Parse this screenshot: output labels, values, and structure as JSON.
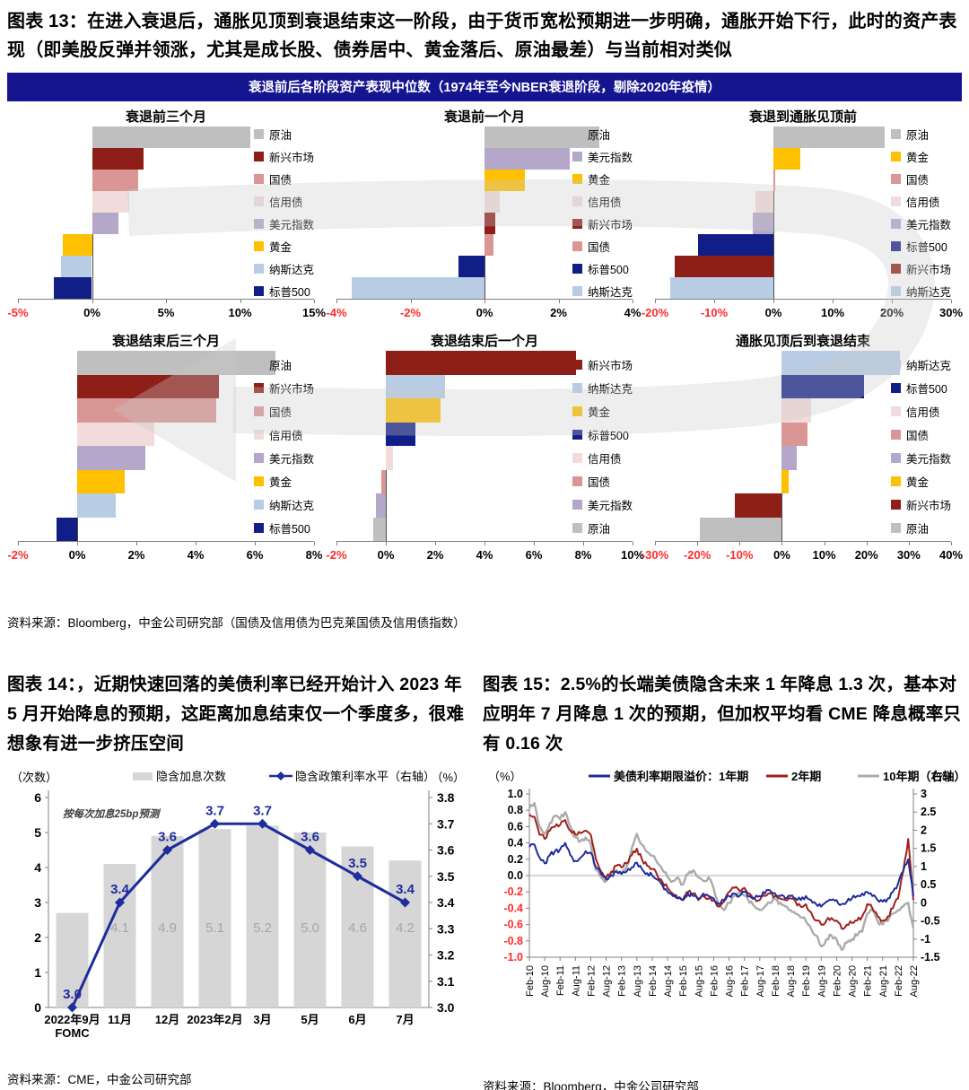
{
  "fig13": {
    "title": "图表 13：在进入衰退后，通胀见顶到衰退结束这一阶段，由于货币宽松预期进一步明确，通胀开始下行，此时的资产表现（即美股反弹并领涨，尤其是成长股、债券居中、黄金落后、原油最差）与当前相对类似",
    "banner": "衰退前后各阶段资产表现中位数（1974年至今NBER衰退阶段，剔除2020年疫情）",
    "source": "资料来源：Bloomberg，中金公司研究部（国债及信用债为巴克莱国债及信用债指数）"
  },
  "fig14": {
    "title": "图表 14：，近期快速回落的美债利率已经开始计入 2023 年 5 月开始降息的预期，这距离加息结束仅一个季度多，很难想象有进一步挤压空间",
    "source": "资料来源：CME，中金公司研究部"
  },
  "fig15": {
    "title": "图表 15：2.5%的长端美债隐含未来 1 年降息 1.3 次，基本对应明年 7 月降息 1 次的预期，但加权平均看 CME 降息概率只有 0.16 次",
    "source": "资料来源：Bloomberg，中金公司研究部"
  },
  "colors": {
    "banner_bg": "#15158F",
    "negative_tick": "#FF2A2A",
    "axis_gray": "#808080",
    "zero_line": "#4d4d4d",
    "arrow_gray": "#C9C9C9",
    "fig14_bar": "#D6D6D6",
    "fig14_bar_label": "#A6A6A6",
    "navy": "#1F2C9C",
    "dark_red": "#9E211B",
    "line_gray": "#ABABAB"
  },
  "asset_colors": {
    "原油": "#BFBFBF",
    "新兴市场": "#8E1F18",
    "国债": "#D99694",
    "信用债": "#F2DCDB",
    "美元指数": "#B4A7C9",
    "黄金": "#FFC000",
    "纳斯达克": "#B8CCE4",
    "标普500": "#121E87"
  },
  "chart_data": [
    {
      "id": "pre3m",
      "type": "bar",
      "row": 1,
      "title": "衰退前三个月",
      "xlim": [
        -5,
        15
      ],
      "ticks": [
        -5,
        0,
        5,
        10,
        15
      ],
      "bars": [
        {
          "label": "原油",
          "value": 10.7
        },
        {
          "label": "新兴市场",
          "value": 3.5
        },
        {
          "label": "国债",
          "value": 3.1
        },
        {
          "label": "信用债",
          "value": 2.5
        },
        {
          "label": "美元指数",
          "value": 1.8
        },
        {
          "label": "黄金",
          "value": -2.0
        },
        {
          "label": "纳斯达克",
          "value": -2.1
        },
        {
          "label": "标普500",
          "value": -2.6
        }
      ]
    },
    {
      "id": "pre1m",
      "type": "bar",
      "row": 1,
      "title": "衰退前一个月",
      "xlim": [
        -4,
        4
      ],
      "ticks": [
        -4,
        -2,
        0,
        2,
        4
      ],
      "bars": [
        {
          "label": "原油",
          "value": 3.1
        },
        {
          "label": "美元指数",
          "value": 2.3
        },
        {
          "label": "黄金",
          "value": 1.1
        },
        {
          "label": "信用债",
          "value": 0.4
        },
        {
          "label": "新兴市场",
          "value": 0.3
        },
        {
          "label": "国债",
          "value": 0.25
        },
        {
          "label": "标普500",
          "value": -0.7
        },
        {
          "label": "纳斯达克",
          "value": -3.6
        }
      ]
    },
    {
      "id": "rec2peak",
      "type": "bar",
      "row": 1,
      "title": "衰退到通胀见顶前",
      "xlim": [
        -20,
        30
      ],
      "ticks": [
        -20,
        -10,
        0,
        10,
        20,
        30
      ],
      "bars": [
        {
          "label": "原油",
          "value": 18.8
        },
        {
          "label": "黄金",
          "value": 4.5
        },
        {
          "label": "国债",
          "value": 0.3
        },
        {
          "label": "信用债",
          "value": -3.0
        },
        {
          "label": "美元指数",
          "value": -3.5
        },
        {
          "label": "标普500",
          "value": -12.8
        },
        {
          "label": "新兴市场",
          "value": -16.6
        },
        {
          "label": "纳斯达克",
          "value": -17.4
        }
      ]
    },
    {
      "id": "post3m",
      "type": "bar",
      "row": 2,
      "title": "衰退结束后三个月",
      "xlim": [
        -2,
        8
      ],
      "ticks": [
        -2,
        0,
        2,
        4,
        6,
        8
      ],
      "bars": [
        {
          "label": "原油",
          "value": 6.7
        },
        {
          "label": "新兴市场",
          "value": 4.8
        },
        {
          "label": "国债",
          "value": 4.7
        },
        {
          "label": "信用债",
          "value": 2.6
        },
        {
          "label": "美元指数",
          "value": 2.3
        },
        {
          "label": "黄金",
          "value": 1.6
        },
        {
          "label": "纳斯达克",
          "value": 1.3
        },
        {
          "label": "标普500",
          "value": -0.7
        }
      ]
    },
    {
      "id": "post1m",
      "type": "bar",
      "row": 2,
      "title": "衰退结束后一个月",
      "xlim": [
        -2,
        10
      ],
      "ticks": [
        -2,
        0,
        2,
        4,
        6,
        8,
        10
      ],
      "bars": [
        {
          "label": "新兴市场",
          "value": 7.7
        },
        {
          "label": "纳斯达克",
          "value": 2.4
        },
        {
          "label": "黄金",
          "value": 2.2
        },
        {
          "label": "标普500",
          "value": 1.2
        },
        {
          "label": "信用债",
          "value": 0.3
        },
        {
          "label": "国债",
          "value": -0.2
        },
        {
          "label": "美元指数",
          "value": -0.4
        },
        {
          "label": "原油",
          "value": -0.5
        }
      ]
    },
    {
      "id": "peak2end",
      "type": "bar",
      "row": 2,
      "title": "通胀见顶后到衰退结束",
      "xlim": [
        -30,
        40
      ],
      "ticks": [
        -30,
        -20,
        -10,
        0,
        10,
        20,
        30,
        40
      ],
      "bars": [
        {
          "label": "纳斯达克",
          "value": 28.0
        },
        {
          "label": "标普500",
          "value": 19.4
        },
        {
          "label": "信用债",
          "value": 7.0
        },
        {
          "label": "国债",
          "value": 6.1
        },
        {
          "label": "美元指数",
          "value": 3.6
        },
        {
          "label": "黄金",
          "value": 1.6
        },
        {
          "label": "新兴市场",
          "value": -11.1
        },
        {
          "label": "原油",
          "value": -19.4
        }
      ]
    },
    {
      "id": "fig14",
      "type": "bar+line",
      "categories": [
        "2022年9月\nFOMC",
        "11月",
        "12月",
        "2023年2月",
        "3月",
        "5月",
        "6月",
        "7月"
      ],
      "bar_series": {
        "name": "隐含加息次数",
        "values": [
          2.7,
          4.1,
          4.9,
          5.1,
          5.2,
          5.0,
          4.6,
          4.2
        ],
        "labels": [
          "",
          "4.1",
          "4.9",
          "5.1",
          "5.2",
          "5.0",
          "4.6",
          "4.2"
        ]
      },
      "line_series": {
        "name": "隐含政策利率水平（右轴）",
        "values": [
          3.0,
          3.4,
          3.6,
          3.7,
          3.7,
          3.6,
          3.5,
          3.4
        ]
      },
      "left_axis": {
        "label": "（次数）",
        "min": 0,
        "max": 6,
        "ticks": [
          0,
          1,
          2,
          3,
          4,
          5,
          6
        ]
      },
      "right_axis": {
        "label": "（%）",
        "min": 3.0,
        "max": 3.8,
        "ticks": [
          3.0,
          3.1,
          3.2,
          3.3,
          3.4,
          3.5,
          3.6,
          3.7,
          3.8
        ]
      },
      "annotation": "按每次加息25bp预测"
    },
    {
      "id": "fig15",
      "type": "line",
      "left_axis": {
        "label": "（%）",
        "min": -1.0,
        "max": 1.0,
        "ticks": [
          1.0,
          0.8,
          0.6,
          0.4,
          0.2,
          0.0,
          -0.2,
          -0.4,
          -0.6,
          -0.8,
          -1.0
        ]
      },
      "right_axis": {
        "label": "（%）",
        "min": -1.5,
        "max": 3.0,
        "ticks": [
          3,
          2.5,
          2,
          1.5,
          1,
          0.5,
          0,
          -0.5,
          -1,
          -1.5
        ]
      },
      "x_labels": [
        "Feb-10",
        "Aug-10",
        "Feb-11",
        "Aug-11",
        "Feb-12",
        "Aug-12",
        "Feb-13",
        "Aug-13",
        "Feb-14",
        "Aug-14",
        "Feb-15",
        "Aug-15",
        "Feb-16",
        "Aug-16",
        "Feb-17",
        "Aug-17",
        "Feb-18",
        "Aug-18",
        "Feb-19",
        "Aug-19",
        "Feb-20",
        "Aug-20",
        "Feb-21",
        "Aug-21",
        "Feb-22",
        "Aug-22"
      ],
      "series": [
        {
          "name": "美债利率期限溢价：1年期",
          "axis": "left",
          "color": "#1F2C9C",
          "values": [
            0.35,
            0.38,
            0.22,
            0.15,
            0.25,
            0.3,
            0.32,
            0.4,
            0.25,
            0.18,
            0.22,
            0.3,
            0.28,
            0.1,
            0.02,
            -0.05,
            0.0,
            0.05,
            0.02,
            0.05,
            0.1,
            0.16,
            0.08,
            0.03,
            0.0,
            -0.05,
            -0.12,
            -0.2,
            -0.25,
            -0.28,
            -0.3,
            -0.22,
            -0.25,
            -0.28,
            -0.22,
            -0.25,
            -0.28,
            -0.35,
            -0.3,
            -0.25,
            -0.22,
            -0.25,
            -0.2,
            -0.25,
            -0.28,
            -0.25,
            -0.22,
            -0.18,
            -0.22,
            -0.25,
            -0.28,
            -0.25,
            -0.28,
            -0.3,
            -0.25,
            -0.3,
            -0.35,
            -0.38,
            -0.32,
            -0.3,
            -0.3,
            -0.35,
            -0.32,
            -0.28,
            -0.25,
            -0.22,
            -0.2,
            -0.25,
            -0.3,
            -0.32,
            -0.28,
            -0.2,
            -0.1,
            0.05,
            0.2,
            -0.25
          ]
        },
        {
          "name": "2年期",
          "axis": "left",
          "color": "#9E211B",
          "values": [
            0.75,
            0.72,
            0.5,
            0.45,
            0.55,
            0.6,
            0.62,
            0.68,
            0.55,
            0.5,
            0.52,
            0.55,
            0.5,
            0.2,
            0.05,
            -0.02,
            0.05,
            0.12,
            0.1,
            0.15,
            0.25,
            0.33,
            0.2,
            0.12,
            0.08,
            0.0,
            -0.08,
            -0.15,
            -0.22,
            -0.28,
            -0.3,
            -0.2,
            -0.22,
            -0.3,
            -0.25,
            -0.28,
            -0.3,
            -0.38,
            -0.32,
            -0.2,
            -0.15,
            -0.18,
            -0.15,
            -0.22,
            -0.28,
            -0.3,
            -0.25,
            -0.22,
            -0.25,
            -0.28,
            -0.3,
            -0.28,
            -0.32,
            -0.38,
            -0.35,
            -0.45,
            -0.55,
            -0.6,
            -0.55,
            -0.52,
            -0.55,
            -0.65,
            -0.6,
            -0.58,
            -0.55,
            -0.5,
            -0.35,
            -0.4,
            -0.5,
            -0.55,
            -0.5,
            -0.4,
            -0.28,
            0.05,
            0.45,
            -0.3
          ]
        },
        {
          "name": "10年期（右轴）",
          "axis": "right",
          "color": "#ABABAB",
          "values": [
            2.6,
            2.75,
            2.1,
            1.9,
            2.2,
            2.4,
            2.3,
            2.5,
            2.1,
            1.8,
            1.7,
            1.8,
            1.6,
            0.9,
            0.7,
            0.6,
            0.8,
            0.9,
            0.8,
            1.0,
            1.5,
            1.9,
            1.6,
            1.4,
            1.3,
            1.1,
            0.9,
            0.7,
            0.6,
            0.7,
            0.5,
            0.8,
            0.9,
            0.7,
            0.6,
            0.7,
            0.4,
            -0.1,
            -0.2,
            0.0,
            0.2,
            0.3,
            0.2,
            0.0,
            -0.1,
            -0.2,
            -0.1,
            0.0,
            0.1,
            0.0,
            -0.1,
            -0.2,
            -0.3,
            -0.4,
            -0.5,
            -0.7,
            -0.9,
            -1.2,
            -1.0,
            -0.9,
            -1.0,
            -1.3,
            -1.1,
            -1.0,
            -0.9,
            -0.8,
            -0.3,
            -0.2,
            -0.5,
            -0.6,
            -0.5,
            -0.3,
            -0.2,
            -0.1,
            0.0,
            -0.7
          ]
        }
      ]
    }
  ]
}
